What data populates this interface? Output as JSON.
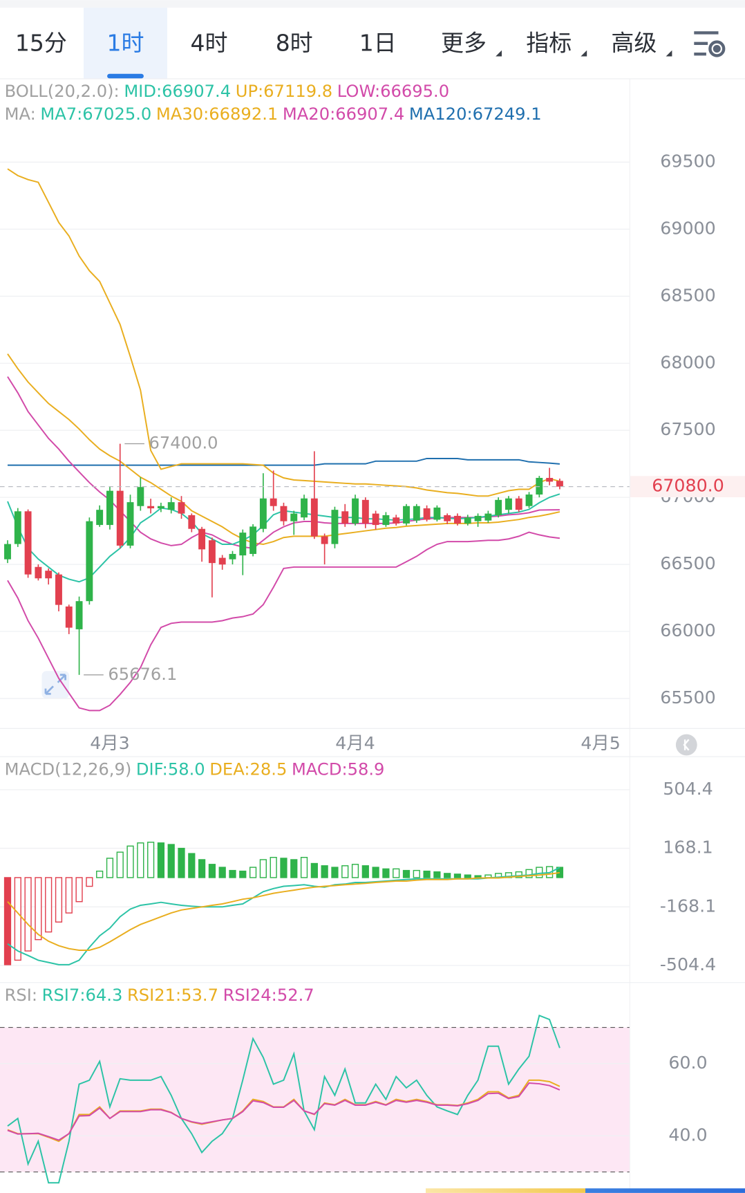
{
  "tabs": [
    "15分",
    "1时",
    "4时",
    "8时",
    "1日",
    "更多",
    "指标",
    "高级"
  ],
  "active_tab": "1时",
  "chart_data": [
    {
      "type": "candlestick",
      "legend": [
        [
          {
            "text": "BOLL(20,2.0):",
            "color": "#a0a0a0"
          },
          {
            "text": "MID:66907.4",
            "color": "#2cc3a6"
          },
          {
            "text": "UP:67119.8",
            "color": "#e9ae1f"
          },
          {
            "text": "LOW:66695.0",
            "color": "#d24aa9"
          }
        ],
        [
          {
            "text": "MA:",
            "color": "#a0a0a0"
          },
          {
            "text": "MA7:67025.0",
            "color": "#2cc3a6"
          },
          {
            "text": "MA30:66892.1",
            "color": "#e9ae1f"
          },
          {
            "text": "MA20:66907.4",
            "color": "#d24aa9"
          },
          {
            "text": "MA120:67249.1",
            "color": "#1f6fae"
          }
        ]
      ],
      "up_color": "#2fb34a",
      "down_color": "#e2404f",
      "open": [
        66538,
        66652,
        66896,
        66481,
        66453,
        66425,
        66186,
        66016,
        66226,
        66794,
        66794,
        67049,
        66640,
        66935,
        66935,
        66918,
        66907,
        66964,
        66867,
        66765,
        66680,
        66549,
        66538,
        66567,
        66578,
        66765,
        66992,
        66935,
        66822,
        66850,
        66992,
        66709,
        66652,
        66896,
        66805,
        66981,
        66879,
        66794,
        66850,
        66805,
        66827,
        66918,
        66833,
        66867,
        66862,
        66805,
        66822,
        66827,
        66867,
        66907,
        66992,
        66935,
        67021,
        67145,
        67123
      ],
      "high": [
        66680,
        66920,
        66910,
        66500,
        66470,
        66440,
        66200,
        66260,
        66850,
        66940,
        67080,
        67400,
        67020,
        67150,
        66990,
        66960,
        67000,
        67010,
        66880,
        66780,
        66700,
        66570,
        66600,
        66760,
        66800,
        67180,
        67200,
        66960,
        66900,
        67020,
        67344,
        66730,
        66930,
        66950,
        67020,
        67000,
        66900,
        66890,
        66870,
        66950,
        66950,
        66940,
        66940,
        66880,
        66880,
        66870,
        66880,
        66900,
        67000,
        67010,
        67010,
        67040,
        67160,
        67220,
        67140
      ],
      "low": [
        66510,
        66630,
        66400,
        66380,
        66350,
        66150,
        65980,
        65676.1,
        66200,
        66780,
        66760,
        66620,
        66620,
        66900,
        66880,
        66890,
        66880,
        66840,
        66740,
        66520,
        66254,
        66460,
        66500,
        66420,
        66560,
        66740,
        66900,
        66790,
        66720,
        66830,
        66690,
        66500,
        66620,
        66780,
        66790,
        66770,
        66760,
        66780,
        66790,
        66790,
        66810,
        66820,
        66820,
        66800,
        66790,
        66790,
        66780,
        66810,
        66850,
        66880,
        66890,
        66920,
        67000,
        67090,
        67060
      ],
      "close": [
        66652,
        66896,
        66425,
        66396,
        66396,
        66198,
        66028,
        66226,
        66822,
        66907,
        67049,
        66640,
        66964,
        67077,
        66918,
        66935,
        66964,
        66879,
        66765,
        66612,
        66510,
        66499,
        66578,
        66737,
        66782,
        66992,
        66935,
        66822,
        66879,
        66992,
        66709,
        66652,
        66907,
        66805,
        66992,
        66805,
        66794,
        66867,
        66805,
        66935,
        66935,
        66833,
        66924,
        66822,
        66805,
        66850,
        66862,
        66879,
        66981,
        66992,
        66907,
        67021,
        67145,
        67117,
        67080
      ],
      "series": [
        {
          "color": "#1f6fae",
          "values": [
            67240,
            67240,
            67240,
            67240,
            67240,
            67240,
            67240,
            67240,
            67240,
            67240,
            67240,
            67240,
            67240,
            67240,
            67240,
            67240,
            67240,
            67240,
            67240,
            67240,
            67240,
            67240,
            67240,
            67240,
            67240,
            67240,
            67240,
            67240,
            67240,
            67240,
            67240,
            67250,
            67250,
            67250,
            67250,
            67250,
            67270,
            67270,
            67270,
            67270,
            67270,
            67290,
            67290,
            67290,
            67290,
            67280,
            67280,
            67280,
            67280,
            67280,
            67280,
            67265,
            67260,
            67255,
            67249.1
          ]
        },
        {
          "color": "#e9ae1f",
          "values": [
            69450,
            69400,
            69370,
            69350,
            69200,
            69050,
            68950,
            68800,
            68690,
            68610,
            68450,
            68290,
            68050,
            67800,
            67350,
            67210,
            67230,
            67250,
            67250,
            67250,
            67250,
            67250,
            67250,
            67250,
            67245,
            67240,
            67180,
            67145,
            67130,
            67125,
            67120,
            67115,
            67110,
            67105,
            67100,
            67100,
            67095,
            67090,
            67085,
            67080,
            67070,
            67055,
            67045,
            67035,
            67030,
            67020,
            67010,
            67010,
            67030,
            67050,
            67060,
            67060,
            67110,
            67140,
            67119.8
          ]
        },
        {
          "color": "#d24aa9",
          "values": [
            66380,
            66250,
            66080,
            65950,
            65800,
            65650,
            65540,
            65430,
            65410,
            65410,
            65450,
            65530,
            65620,
            65730,
            65900,
            66030,
            66060,
            66070,
            66070,
            66070,
            66070,
            66080,
            66100,
            66110,
            66130,
            66200,
            66330,
            66470,
            66480,
            66480,
            66480,
            66480,
            66480,
            66480,
            66480,
            66480,
            66480,
            66480,
            66480,
            66520,
            66560,
            66610,
            66650,
            66670,
            66670,
            66670,
            66675,
            66680,
            66680,
            66690,
            66710,
            66740,
            66720,
            66705,
            66695.0
          ]
        },
        {
          "color": "#e9ae1f",
          "values": [
            68070,
            67960,
            67860,
            67780,
            67700,
            67640,
            67580,
            67510,
            67430,
            67360,
            67310,
            67270,
            67210,
            67150,
            67110,
            67060,
            67010,
            66970,
            66900,
            66860,
            66820,
            66780,
            66730,
            66690,
            66660,
            66650,
            66670,
            66700,
            66710,
            66710,
            66710,
            66710,
            66720,
            66730,
            66740,
            66750,
            66760,
            66770,
            66775,
            66785,
            66790,
            66795,
            66800,
            66805,
            66805,
            66805,
            66810,
            66810,
            66815,
            66825,
            66835,
            66850,
            66860,
            66875,
            66892.1
          ]
        },
        {
          "color": "#d24aa9",
          "values": [
            67900,
            67780,
            67640,
            67540,
            67440,
            67360,
            67270,
            67190,
            67110,
            67040,
            66980,
            66900,
            66820,
            66740,
            66690,
            66660,
            66640,
            66650,
            66700,
            66740,
            66720,
            66680,
            66650,
            66630,
            66620,
            66680,
            66740,
            66780,
            66810,
            66820,
            66820,
            66810,
            66805,
            66805,
            66805,
            66805,
            66805,
            66805,
            66810,
            66820,
            66830,
            66840,
            66845,
            66850,
            66850,
            66850,
            66850,
            66855,
            66860,
            66870,
            66875,
            66885,
            66905,
            66907,
            66907.4
          ]
        },
        {
          "color": "#2cc3a6",
          "values": [
            66970,
            66780,
            66620,
            66540,
            66480,
            66420,
            66390,
            66370,
            66400,
            66480,
            66560,
            66620,
            66700,
            66810,
            66860,
            66920,
            66910,
            66880,
            66820,
            66730,
            66690,
            66650,
            66650,
            66680,
            66720,
            66790,
            66870,
            66900,
            66890,
            66880,
            66870,
            66860,
            66850,
            66850,
            66850,
            66840,
            66840,
            66835,
            66830,
            66835,
            66840,
            66850,
            66850,
            66845,
            66840,
            66845,
            66850,
            66860,
            66870,
            66880,
            66890,
            66910,
            66960,
            67000,
            67025.0
          ]
        }
      ],
      "ylim": [
        65279,
        70113
      ],
      "yticks": [
        65500,
        66000,
        66500,
        67000,
        67500,
        68000,
        68500,
        69000,
        69500
      ],
      "grid": true,
      "last_price": {
        "value": 67080,
        "label": "67080.0"
      },
      "annotations": [
        {
          "value": 67400,
          "label": "67400.0"
        },
        {
          "value": 65676.1,
          "label": "65676.1"
        }
      ],
      "xticks": [
        {
          "value": 10,
          "label": "4月3"
        },
        {
          "value": 34,
          "label": "4月4"
        },
        {
          "value": 58,
          "label": "4月5"
        }
      ]
    },
    {
      "type": "macd",
      "legend": [
        [
          {
            "text": "MACD(12,26,9)",
            "color": "#a0a0a0"
          },
          {
            "text": "DIF:58.0",
            "color": "#2cc3a6"
          },
          {
            "text": "DEA:28.5",
            "color": "#e9ae1f"
          },
          {
            "text": "MACD:58.9",
            "color": "#d24aa9"
          }
        ]
      ],
      "up_color": "#2fb34a",
      "down_color": "#e2404f",
      "histogram": [
        -500,
        -474,
        -421,
        -356,
        -312,
        -255,
        -203,
        -138,
        -50,
        37,
        111,
        146,
        181,
        199,
        203,
        199,
        190,
        168,
        138,
        103,
        76,
        59,
        41,
        37,
        59,
        103,
        116,
        111,
        103,
        116,
        81,
        68,
        59,
        68,
        76,
        68,
        59,
        50,
        50,
        41,
        41,
        37,
        33,
        24,
        20,
        15,
        11,
        15,
        24,
        28,
        33,
        46,
        59,
        63,
        58.9
      ],
      "series": [
        {
          "color": "#2cc3a6",
          "values": [
            -380,
            -421,
            -447,
            -474,
            -487,
            -500,
            -500,
            -474,
            -400,
            -334,
            -290,
            -225,
            -181,
            -159,
            -151,
            -142,
            -151,
            -159,
            -164,
            -168,
            -168,
            -168,
            -159,
            -151,
            -116,
            -81,
            -63,
            -50,
            -46,
            -41,
            -50,
            -55,
            -41,
            -37,
            -28,
            -28,
            -24,
            -20,
            -15,
            -11,
            -7,
            -7,
            -7,
            -7,
            -7,
            -7,
            -7,
            -2,
            2,
            7,
            11,
            15,
            24,
            28,
            58.0
          ]
        },
        {
          "color": "#e9ae1f",
          "values": [
            -138,
            -203,
            -269,
            -326,
            -365,
            -391,
            -408,
            -417,
            -417,
            -400,
            -369,
            -334,
            -299,
            -269,
            -247,
            -225,
            -203,
            -186,
            -177,
            -168,
            -159,
            -151,
            -138,
            -124,
            -116,
            -103,
            -90,
            -81,
            -72,
            -63,
            -55,
            -50,
            -46,
            -41,
            -37,
            -33,
            -28,
            -24,
            -20,
            -20,
            -15,
            -11,
            -11,
            -11,
            -7,
            -7,
            -2,
            -2,
            -2,
            2,
            7,
            11,
            15,
            20,
            28.5
          ]
        }
      ],
      "ylim": [
        -596,
        692
      ],
      "yticks": [
        504.4,
        168.1,
        -168.1,
        -504.4
      ],
      "grid": true
    },
    {
      "type": "line",
      "legend": [
        [
          {
            "text": "RSI:",
            "color": "#a0a0a0"
          },
          {
            "text": "RSI7:64.3",
            "color": "#2cc3a6"
          },
          {
            "text": "RSI21:53.7",
            "color": "#e9ae1f"
          },
          {
            "text": "RSI24:52.7",
            "color": "#d24aa9"
          }
        ]
      ],
      "series": [
        {
          "color": "#2cc3a6",
          "values": [
            42.7,
            44.8,
            32.2,
            38.5,
            27.0,
            27.0,
            38.5,
            54.3,
            55.4,
            60.6,
            48.0,
            55.8,
            55.4,
            55.4,
            55.4,
            56.4,
            51.2,
            44.8,
            40.6,
            35.4,
            38.5,
            40.6,
            44.8,
            55.4,
            66.9,
            61.7,
            54.3,
            55.4,
            62.7,
            46.9,
            41.7,
            56.4,
            51.2,
            58.5,
            49.1,
            49.1,
            54.3,
            50.1,
            56.4,
            53.3,
            55.4,
            51.2,
            48.0,
            46.9,
            45.9,
            51.2,
            55.4,
            64.8,
            64.8,
            54.3,
            58.5,
            62.0,
            73.3,
            72.2,
            64.3
          ]
        },
        {
          "color": "#e9ae1f",
          "values": [
            41.7,
            40.6,
            40.6,
            40.6,
            39.6,
            38.5,
            40.6,
            45.9,
            45.9,
            48.0,
            44.8,
            46.9,
            46.9,
            46.9,
            47.4,
            47.4,
            46.5,
            44.8,
            43.8,
            43.2,
            43.8,
            44.4,
            44.8,
            46.9,
            50.1,
            49.5,
            48.0,
            48.0,
            50.1,
            46.9,
            45.9,
            49.1,
            48.6,
            50.1,
            48.6,
            48.6,
            49.5,
            48.6,
            50.1,
            49.5,
            50.1,
            49.5,
            48.6,
            48.6,
            48.4,
            49.1,
            50.1,
            52.2,
            52.2,
            50.5,
            51.2,
            55.4,
            55.4,
            55.0,
            53.7
          ]
        },
        {
          "color": "#d24aa9",
          "values": [
            41.5,
            40.5,
            40.6,
            40.7,
            39.8,
            38.8,
            40.6,
            45.5,
            45.6,
            47.7,
            44.8,
            46.7,
            46.7,
            46.7,
            47.2,
            47.2,
            46.4,
            44.8,
            43.9,
            43.4,
            43.9,
            44.4,
            44.8,
            46.7,
            49.7,
            49.2,
            47.9,
            47.9,
            49.8,
            46.9,
            46.0,
            48.9,
            48.5,
            49.8,
            48.5,
            48.5,
            49.3,
            48.5,
            49.8,
            49.3,
            49.8,
            49.3,
            48.5,
            48.5,
            48.3,
            48.9,
            49.8,
            51.7,
            51.8,
            50.3,
            50.9,
            54.6,
            54.4,
            53.9,
            52.7
          ]
        }
      ],
      "ylim": [
        24.2,
        82.3
      ],
      "yticks": [
        {
          "value": 40,
          "label": "40.0"
        },
        {
          "value": 60,
          "label": "60.0"
        }
      ],
      "band": [
        30,
        70
      ],
      "band_color": "#fde7f4",
      "grid": true
    }
  ]
}
